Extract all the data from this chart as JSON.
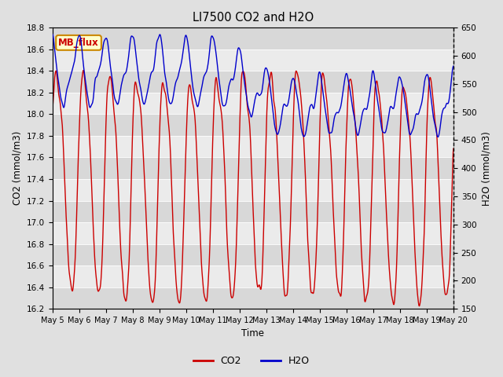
{
  "title": "LI7500 CO2 and H2O",
  "xlabel": "Time",
  "ylabel_left": "CO2 (mmol/m3)",
  "ylabel_right": "H2O (mmol/m3)",
  "ylim_left": [
    16.2,
    18.8
  ],
  "ylim_right": [
    150,
    650
  ],
  "yticks_left": [
    16.2,
    16.4,
    16.6,
    16.8,
    17.0,
    17.2,
    17.4,
    17.6,
    17.8,
    18.0,
    18.2,
    18.4,
    18.6,
    18.8
  ],
  "yticks_right": [
    150,
    200,
    250,
    300,
    350,
    400,
    450,
    500,
    550,
    600,
    650
  ],
  "xtick_labels": [
    "May 5",
    "May 6",
    "May 7",
    "May 8",
    "May 9",
    "May 10",
    "May 11",
    "May 12",
    "May 13",
    "May 14",
    "May 15",
    "May 16",
    "May 17",
    "May 18",
    "May 19",
    "May 20"
  ],
  "co2_color": "#cc0000",
  "h2o_color": "#0000cc",
  "line_width": 1.0,
  "fig_bg_color": "#e0e0e0",
  "plot_bg_color": "#f2f2f2",
  "band_color_dark": "#d8d8d8",
  "band_color_light": "#ebebeb",
  "mb_flux_label": "MB_flux",
  "mb_flux_bg": "#ffffcc",
  "mb_flux_border": "#cc8800",
  "mb_flux_text_color": "#cc0000",
  "legend_co2": "CO2",
  "legend_h2o": "H2O",
  "n_points": 2000
}
